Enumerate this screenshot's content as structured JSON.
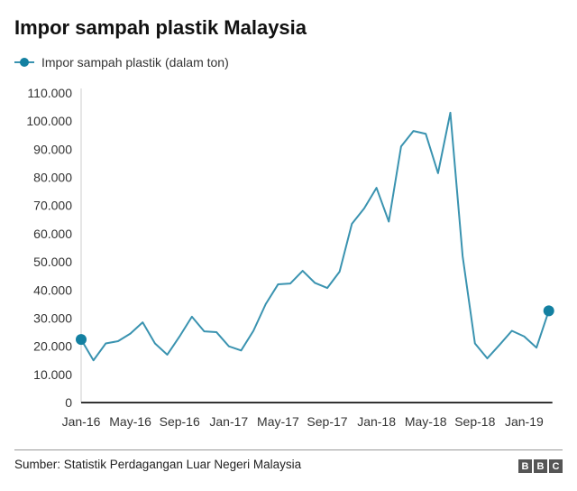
{
  "header": {
    "title": "Impor sampah plastik Malaysia"
  },
  "footer": {
    "source": "Sumber: Statistik Perdagangan Luar Negeri Malaysia",
    "logo": [
      "B",
      "B",
      "C"
    ]
  },
  "colors": {
    "line": "#3a93b0",
    "marker": "#1380a1",
    "axis": "#333333"
  },
  "chart_data": {
    "type": "line",
    "title": "Impor sampah plastik Malaysia",
    "xlabel": "",
    "ylabel": "",
    "ylim": [
      0,
      110000
    ],
    "yticks": [
      0,
      10000,
      20000,
      30000,
      40000,
      50000,
      60000,
      70000,
      80000,
      90000,
      100000,
      110000
    ],
    "ytick_labels": [
      "0",
      "10.000",
      "20.000",
      "30.000",
      "40.000",
      "50.000",
      "60.000",
      "70.000",
      "80.000",
      "90.000",
      "100.000",
      "110.000"
    ],
    "xtick_labels": [
      "Jan-16",
      "May-16",
      "Sep-16",
      "Jan-17",
      "May-17",
      "Sep-17",
      "Jan-18",
      "May-18",
      "Sep-18",
      "Jan-19"
    ],
    "xtick_every_months": 4,
    "legend": {
      "position": "top-left",
      "entries": [
        "Impor sampah plastik (dalam ton)"
      ]
    },
    "grid": false,
    "series": [
      {
        "name": "Impor sampah plastik (dalam ton)",
        "start": "Jan-16",
        "values": [
          22400,
          15000,
          21000,
          21800,
          24500,
          28500,
          21000,
          17000,
          23500,
          30500,
          25300,
          25000,
          20000,
          18500,
          25500,
          35000,
          42000,
          42300,
          46800,
          42500,
          40700,
          46500,
          63500,
          69000,
          76300,
          64300,
          91000,
          96500,
          95500,
          81500,
          103000,
          52000,
          21000,
          15700,
          20500,
          25500,
          23500,
          19500,
          32600
        ]
      }
    ]
  }
}
